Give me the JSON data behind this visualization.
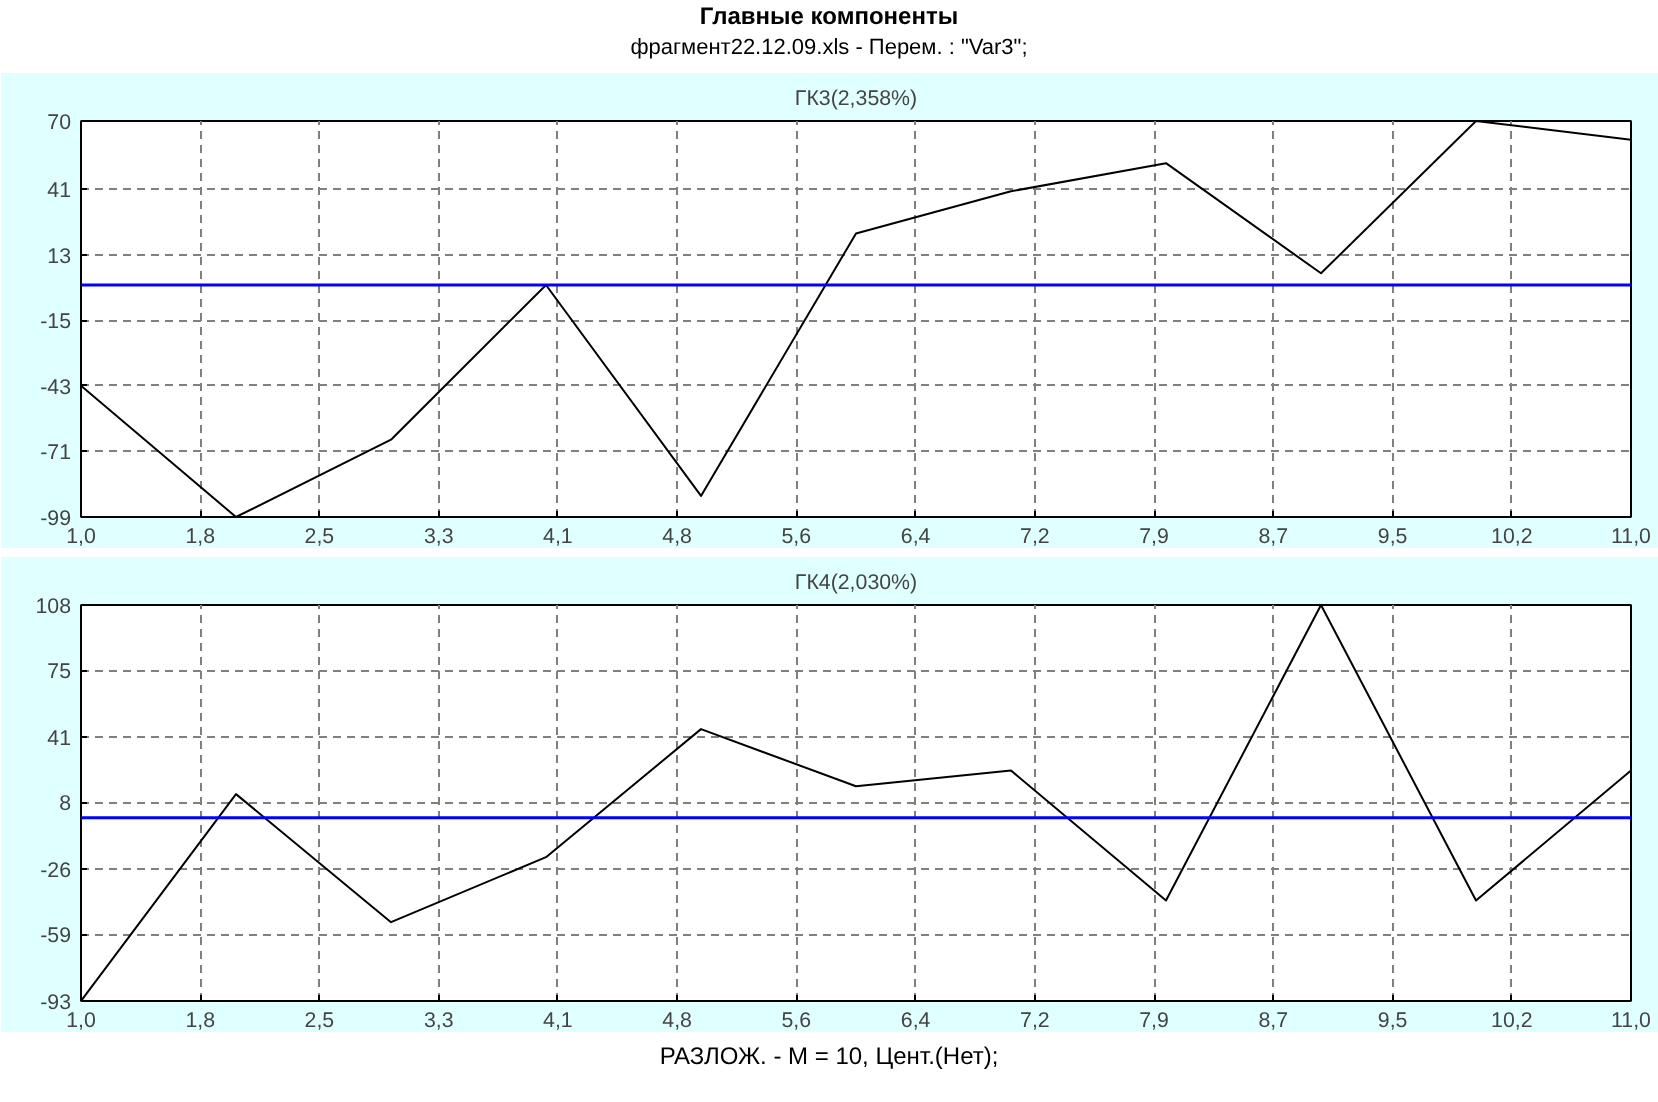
{
  "chart_data": [
    {
      "type": "line",
      "title": "ГК3(2,358%)",
      "annotations": [
        "Главные компоненты",
        "фрагмент22.12.09.xls - Перем. :  \"Var3\";"
      ],
      "x": [
        1,
        2,
        3,
        4,
        5,
        6,
        7,
        8,
        9,
        10,
        11
      ],
      "series": [
        {
          "color": "#000000",
          "values": [
            -43,
            -99,
            -66,
            0,
            -90,
            22,
            40,
            52,
            5,
            70,
            62
          ]
        }
      ],
      "xlim": [
        1,
        11
      ],
      "ylim": [
        -99,
        70
      ],
      "xticks": [
        {
          "value": 1,
          "label": "1,0"
        },
        {
          "value": 1.769,
          "label": "1,8"
        },
        {
          "value": 2.538,
          "label": "2,5"
        },
        {
          "value": 3.308,
          "label": "3,3"
        },
        {
          "value": 4.077,
          "label": "4,1"
        },
        {
          "value": 4.846,
          "label": "4,8"
        },
        {
          "value": 5.615,
          "label": "5,6"
        },
        {
          "value": 6.385,
          "label": "6,4"
        },
        {
          "value": 7.154,
          "label": "7,2"
        },
        {
          "value": 7.923,
          "label": "7,9"
        },
        {
          "value": 8.692,
          "label": "8,7"
        },
        {
          "value": 9.462,
          "label": "9,5"
        },
        {
          "value": 10.231,
          "label": "10,2"
        },
        {
          "value": 11,
          "label": "11,0"
        }
      ],
      "yticks": [
        70,
        41,
        13,
        -15,
        -43,
        -71,
        -99
      ],
      "ref_lines": [
        {
          "axis": "y",
          "value": 0,
          "color": "#0000ff"
        }
      ],
      "grid": true,
      "marker": "none",
      "line_style": "solid"
    },
    {
      "type": "line",
      "title": "ГК4(2,030%)",
      "annotations": [
        "РАЗЛОЖ. - М = 10, Цент.(Нет);"
      ],
      "x": [
        1,
        2,
        3,
        4,
        5,
        6,
        7,
        8,
        9,
        10,
        11
      ],
      "series": [
        {
          "color": "#000000",
          "values": [
            -93,
            12,
            -53,
            -20,
            45,
            16,
            24,
            -42,
            108,
            -42,
            24
          ]
        }
      ],
      "xlim": [
        1,
        11
      ],
      "ylim": [
        -93,
        108
      ],
      "xticks": [
        {
          "value": 1,
          "label": "1,0"
        },
        {
          "value": 1.769,
          "label": "1,8"
        },
        {
          "value": 2.538,
          "label": "2,5"
        },
        {
          "value": 3.308,
          "label": "3,3"
        },
        {
          "value": 4.077,
          "label": "4,1"
        },
        {
          "value": 4.846,
          "label": "4,8"
        },
        {
          "value": 5.615,
          "label": "5,6"
        },
        {
          "value": 6.385,
          "label": "6,4"
        },
        {
          "value": 7.154,
          "label": "7,2"
        },
        {
          "value": 7.923,
          "label": "7,9"
        },
        {
          "value": 8.692,
          "label": "8,7"
        },
        {
          "value": 9.462,
          "label": "9,5"
        },
        {
          "value": 10.231,
          "label": "10,2"
        },
        {
          "value": 11,
          "label": "11,0"
        }
      ],
      "yticks": [
        108,
        75,
        41,
        8,
        -26,
        -59,
        -93
      ],
      "ref_lines": [
        {
          "axis": "y",
          "value": 0,
          "color": "#0000ff"
        }
      ],
      "grid": true,
      "marker": "none",
      "line_style": "solid"
    }
  ]
}
